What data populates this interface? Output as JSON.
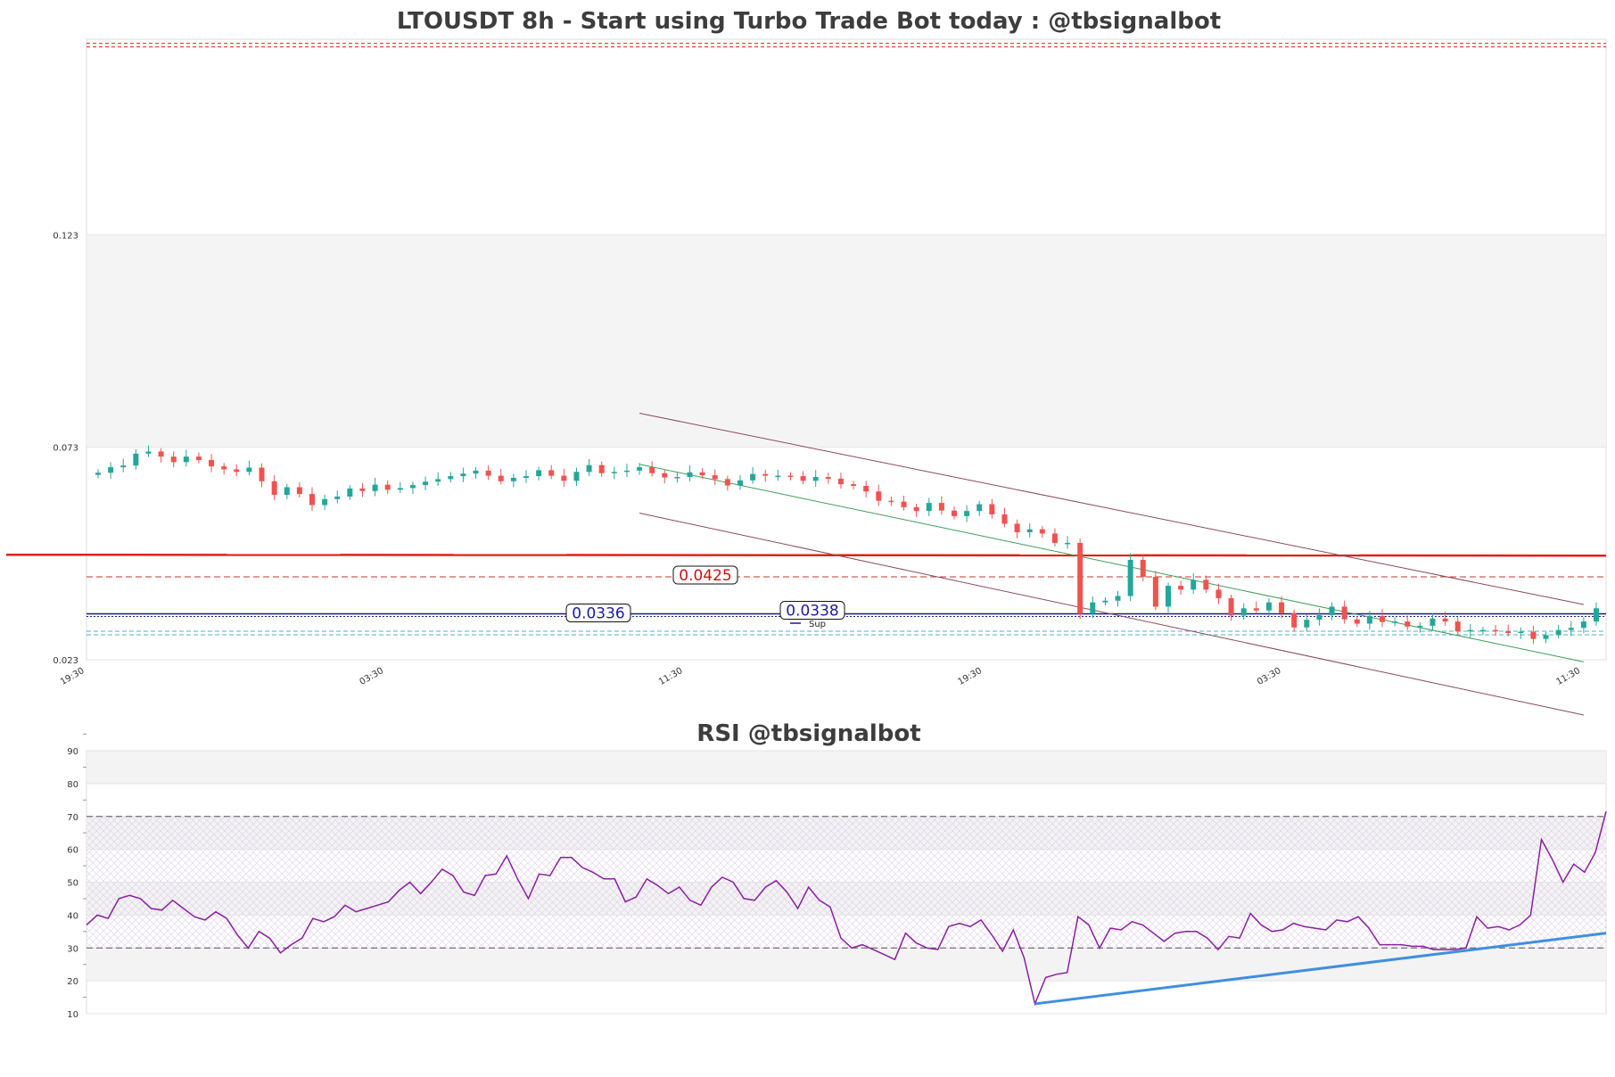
{
  "chart_data": [
    {
      "type": "candlestick",
      "title": "LTOUSDT 8h - Start using Turbo Trade Bot today : @tbsignalbot",
      "ylim": [
        0.023,
        0.169
      ],
      "yticks": [
        "0.023",
        "0.073",
        "0.123"
      ],
      "xticks": [
        "19:30",
        "03:30",
        "11:30",
        "19:30",
        "03:30",
        "11:30"
      ],
      "grid": true,
      "levels": {
        "resistance_top": 0.1676,
        "main_red": 0.0475,
        "red_dashed": 0.0425,
        "support_blue": 0.0336,
        "support_blue_2": 0.0338,
        "cyan_dashed": 0.0293
      },
      "level_labels": [
        "0.0425",
        "0.0336",
        "0.0338"
      ],
      "legend": [
        "Sup"
      ],
      "close": [
        0.067,
        0.0683,
        0.0687,
        0.0715,
        0.072,
        0.0708,
        0.0695,
        0.0708,
        0.07,
        0.0685,
        0.0678,
        0.0672,
        0.0682,
        0.065,
        0.0618,
        0.0636,
        0.062,
        0.0594,
        0.0608,
        0.0614,
        0.0633,
        0.0627,
        0.0642,
        0.063,
        0.0634,
        0.0641,
        0.0649,
        0.0655,
        0.0662,
        0.0668,
        0.0675,
        0.0663,
        0.065,
        0.0658,
        0.0662,
        0.0676,
        0.0663,
        0.0651,
        0.0672,
        0.0688,
        0.0669,
        0.0672,
        0.0675,
        0.0683,
        0.0669,
        0.0659,
        0.066,
        0.0671,
        0.0664,
        0.0655,
        0.064,
        0.0652,
        0.0667,
        0.0663,
        0.0663,
        0.0662,
        0.0651,
        0.066,
        0.0656,
        0.0643,
        0.0639,
        0.0626,
        0.0604,
        0.0602,
        0.0589,
        0.058,
        0.0599,
        0.0581,
        0.0568,
        0.058,
        0.0596,
        0.0572,
        0.055,
        0.053,
        0.0537,
        0.0527,
        0.0505,
        0.0505,
        0.0338,
        0.0365,
        0.0369,
        0.038,
        0.0465,
        0.0425,
        0.0355,
        0.0404,
        0.0395,
        0.0418,
        0.0395,
        0.0375,
        0.0334,
        0.0351,
        0.0346,
        0.0365,
        0.034,
        0.0306,
        0.0324,
        0.0335,
        0.0355,
        0.0325,
        0.0315,
        0.0333,
        0.0319,
        0.032,
        0.0308,
        0.031,
        0.0327,
        0.032,
        0.0297,
        0.03,
        0.03,
        0.0297,
        0.0293,
        0.0296,
        0.0279,
        0.0288,
        0.03,
        0.0305,
        0.032,
        0.0351
      ]
    },
    {
      "type": "line",
      "title": "RSI @tbsignalbot",
      "ylim": [
        10,
        90
      ],
      "yticks": [
        "10",
        "20",
        "30",
        "40",
        "50",
        "60",
        "70",
        "80",
        "90"
      ],
      "overbought": 70,
      "oversold": 30,
      "values": [
        37,
        40,
        39,
        45,
        46,
        45,
        42,
        41.5,
        44.5,
        42,
        39.5,
        38.5,
        41,
        39,
        34,
        30,
        35,
        33,
        28.5,
        31,
        33,
        39,
        38,
        39.5,
        43,
        41,
        42,
        43,
        44,
        47.5,
        50,
        46.5,
        50,
        54,
        52,
        47,
        46,
        52,
        52.5,
        58,
        51,
        45,
        52.5,
        52,
        57.5,
        57.5,
        54.5,
        53,
        51,
        51,
        44,
        45.5,
        51,
        49,
        46.5,
        48.5,
        44.5,
        43,
        48.5,
        51.5,
        50,
        45,
        44.5,
        48.5,
        50.5,
        47,
        42,
        48.5,
        44.5,
        42.5,
        33,
        30,
        31,
        29.5,
        28,
        26.5,
        34.5,
        31.5,
        30,
        29.5,
        36.5,
        37.5,
        36.5,
        38.5,
        34,
        29,
        35.5,
        27,
        13,
        21,
        22,
        22.5,
        39.5,
        37,
        30,
        36,
        35.5,
        38,
        37,
        34.5,
        32,
        34.5,
        35,
        35,
        33,
        29.5,
        33.5,
        33,
        40.5,
        37,
        35,
        35.5,
        37.5,
        36.5,
        36,
        35.5,
        38.5,
        38,
        39.5,
        36,
        31,
        31,
        31,
        30.5,
        30.5,
        29.5,
        29.5,
        29.5,
        30,
        39.5,
        36,
        36.5,
        35.5,
        37,
        40,
        63,
        57,
        50,
        55.5,
        53,
        59,
        71.5
      ]
    }
  ],
  "colors": {
    "bull": "#26a69a",
    "bear": "#ef5350",
    "red_line": "#e0201a",
    "support": "#1a1a8c",
    "cyan": "#4ab3c8",
    "channel_outer": "#8b4a5e",
    "channel_mid": "#3f9e5a",
    "rsi": "#8a1fa0",
    "rsi_trend": "#3f8fe0"
  }
}
